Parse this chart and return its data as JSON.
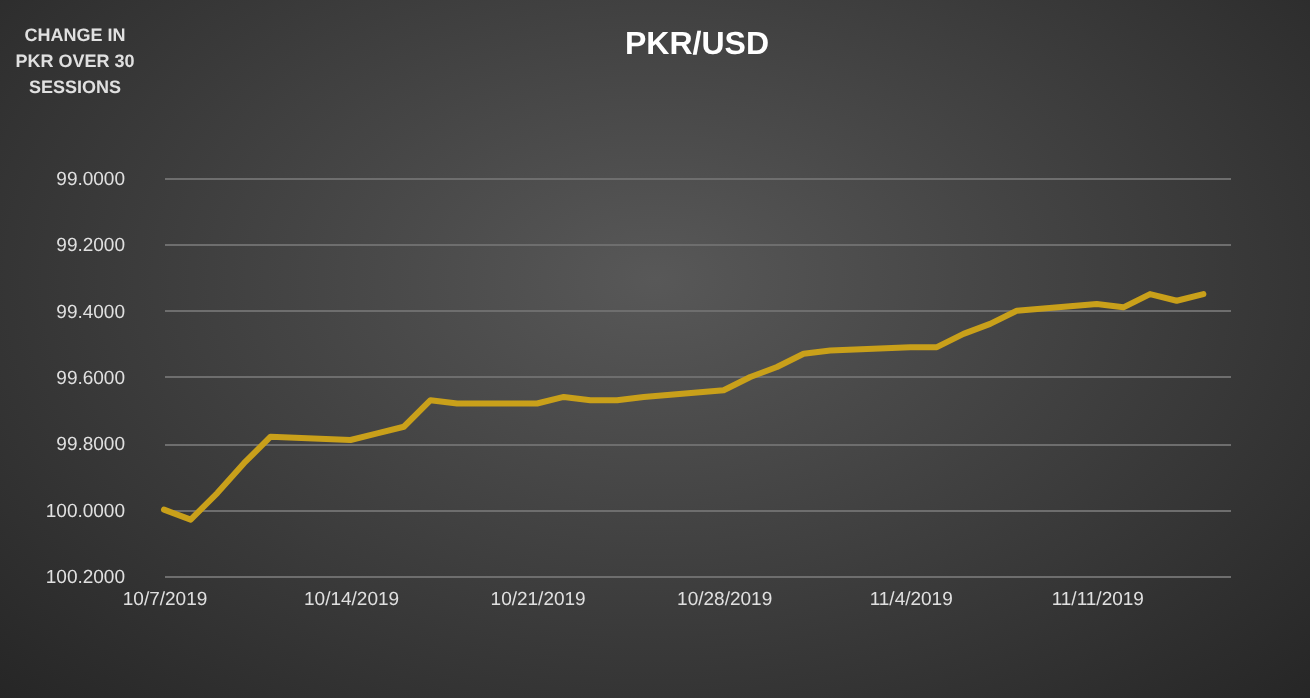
{
  "chart_data": {
    "type": "line",
    "title": "PKR/USD",
    "ylabel": "CHANGE IN PKR OVER 30 SESSIONS",
    "x": [
      "2019-10-07",
      "2019-10-08",
      "2019-10-09",
      "2019-10-10",
      "2019-10-11",
      "2019-10-14",
      "2019-10-15",
      "2019-10-16",
      "2019-10-17",
      "2019-10-18",
      "2019-10-21",
      "2019-10-22",
      "2019-10-23",
      "2019-10-24",
      "2019-10-25",
      "2019-10-28",
      "2019-10-29",
      "2019-10-30",
      "2019-10-31",
      "2019-11-01",
      "2019-11-04",
      "2019-11-05",
      "2019-11-06",
      "2019-11-07",
      "2019-11-08",
      "2019-11-11",
      "2019-11-12",
      "2019-11-13",
      "2019-11-14",
      "2019-11-15"
    ],
    "series": [
      {
        "color": "#c9a01a",
        "values": [
          100.0,
          100.03,
          99.95,
          99.86,
          99.78,
          99.79,
          99.77,
          99.75,
          99.67,
          99.68,
          99.68,
          99.66,
          99.67,
          99.67,
          99.66,
          99.64,
          99.6,
          99.57,
          99.53,
          99.52,
          99.51,
          99.51,
          99.47,
          99.44,
          99.4,
          99.38,
          99.39,
          99.35,
          99.37,
          99.35
        ]
      }
    ],
    "xlim": [
      "2019-10-07",
      "2019-11-16"
    ],
    "xticks": [
      {
        "value": "2019-10-07",
        "label": "10/7/2019"
      },
      {
        "value": "2019-10-14",
        "label": "10/14/2019"
      },
      {
        "value": "2019-10-21",
        "label": "10/21/2019"
      },
      {
        "value": "2019-10-28",
        "label": "10/28/2019"
      },
      {
        "value": "2019-11-04",
        "label": "11/4/2019"
      },
      {
        "value": "2019-11-11",
        "label": "11/11/2019"
      }
    ],
    "ylim": [
      100.2,
      99.0
    ],
    "yticks": [
      {
        "value": 99.0,
        "label": "99.0000"
      },
      {
        "value": 99.2,
        "label": "99.2000"
      },
      {
        "value": 99.4,
        "label": "99.4000"
      },
      {
        "value": 99.6,
        "label": "99.6000"
      },
      {
        "value": 99.8,
        "label": "99.8000"
      },
      {
        "value": 100.0,
        "label": "100.0000"
      },
      {
        "value": 100.2,
        "label": "100.2000"
      }
    ],
    "grid": "y",
    "legend": false,
    "marker": "none",
    "line_style": "solid"
  }
}
